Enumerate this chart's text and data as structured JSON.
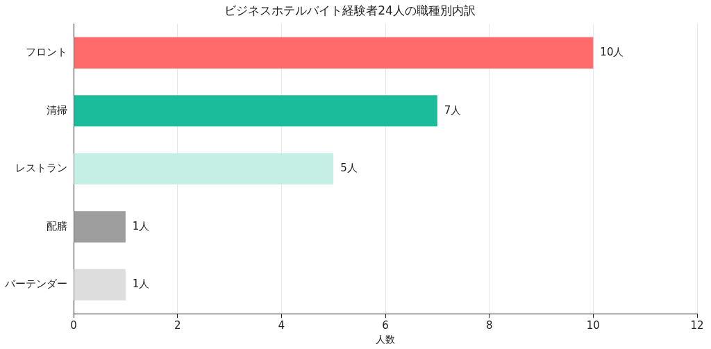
{
  "chart_data": {
    "type": "bar",
    "orientation": "horizontal",
    "title": "ビジネスホテルバイト経験者24人の職種別内訳",
    "xlabel": "人数",
    "categories": [
      "フロント",
      "清掃",
      "レストラン",
      "配膳",
      "バーテンダー"
    ],
    "values": [
      10,
      7,
      5,
      1,
      1
    ],
    "colors": [
      "#ff6b6b",
      "#1abc9c",
      "#c5efe5",
      "#9e9e9e",
      "#dddddd"
    ],
    "value_labels": [
      "10人",
      "7人",
      "5人",
      "1人",
      "1人"
    ],
    "xlim": [
      0,
      12
    ],
    "xticks": [
      0,
      2,
      4,
      6,
      8,
      10,
      12
    ],
    "grid": "x",
    "legend": false
  }
}
